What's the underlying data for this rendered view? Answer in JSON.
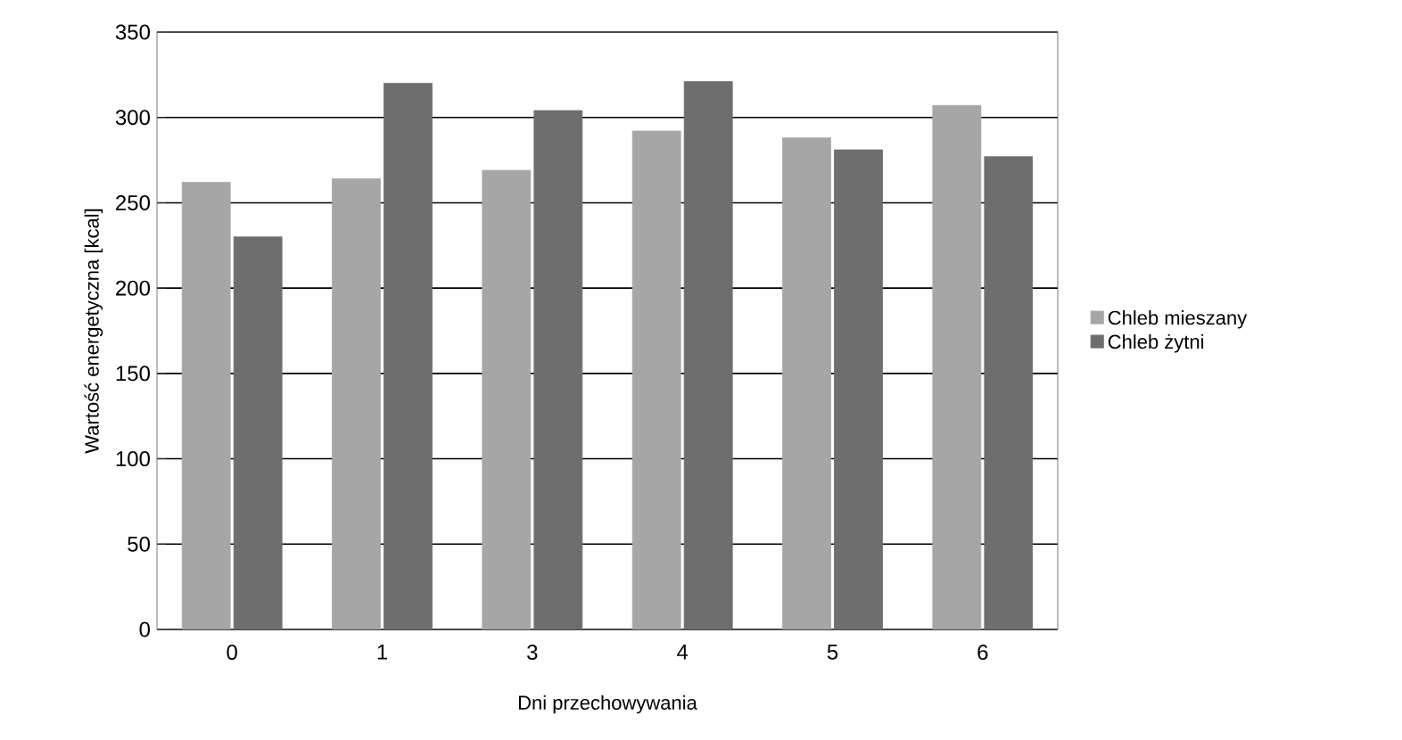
{
  "chart_data": {
    "type": "bar",
    "xlabel": "Dni przechowywania",
    "ylabel": "Wartość energetyczna [kcal]",
    "categories": [
      "0",
      "1",
      "3",
      "4",
      "5",
      "6"
    ],
    "series": [
      {
        "name": "Chleb mieszany",
        "color": "#a6a6a6",
        "values": [
          262,
          264,
          269,
          292,
          288,
          307
        ]
      },
      {
        "name": "Chleb żytni",
        "color": "#6e6e6e",
        "values": [
          230,
          320,
          304,
          321,
          281,
          277
        ]
      }
    ],
    "ylim": [
      0,
      350
    ],
    "yticks": [
      0,
      50,
      100,
      150,
      200,
      250,
      300,
      350
    ],
    "grid": "y",
    "legend": "right"
  }
}
